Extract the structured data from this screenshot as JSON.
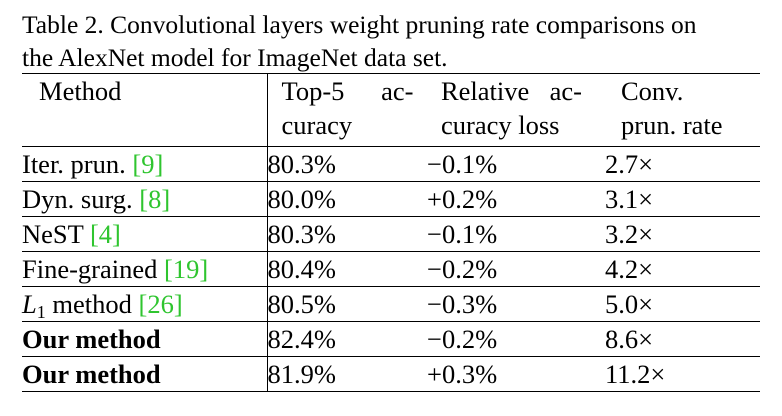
{
  "caption": {
    "line1": "Table 2. Convolutional layers weight pruning rate comparisons on",
    "line2": "the AlexNet model for ImageNet data set."
  },
  "table": {
    "headers": [
      {
        "line1": "Method",
        "line2": ""
      },
      {
        "line1": "Top-5 ac-",
        "line2": "curacy"
      },
      {
        "line1": "Relative ac-",
        "line2": "curacy loss"
      },
      {
        "line1": "Conv.",
        "line2": "prun. rate"
      }
    ],
    "rows": [
      {
        "method": "Iter. prun. ",
        "ref": "[9]",
        "accuracy": "80.3%",
        "loss": "−0.1%",
        "rate": "2.7×"
      },
      {
        "method": "Dyn. surg. ",
        "ref": "[8]",
        "accuracy": "80.0%",
        "loss": "+0.2%",
        "rate": "3.1×"
      },
      {
        "method": "NeST ",
        "ref": "[4]",
        "accuracy": "80.3%",
        "loss": "−0.1%",
        "rate": "3.2×"
      },
      {
        "method": "Fine-grained ",
        "ref": "[19]",
        "accuracy": "80.4%",
        "loss": "−0.2%",
        "rate": "4.2×"
      },
      {
        "method_italic": "L",
        "method_sub": "1",
        "method": " method ",
        "ref": "[26]",
        "accuracy": "80.5%",
        "loss": "−0.3%",
        "rate": "5.0×"
      },
      {
        "method": "Our method",
        "ref": "",
        "accuracy": "82.4%",
        "loss": "−0.2%",
        "rate": "8.6×"
      },
      {
        "method": "Our method",
        "ref": "",
        "accuracy": "81.9%",
        "loss": "+0.3%",
        "rate": "11.2×"
      }
    ]
  },
  "colors": {
    "reference_link": "#2fc52f"
  }
}
